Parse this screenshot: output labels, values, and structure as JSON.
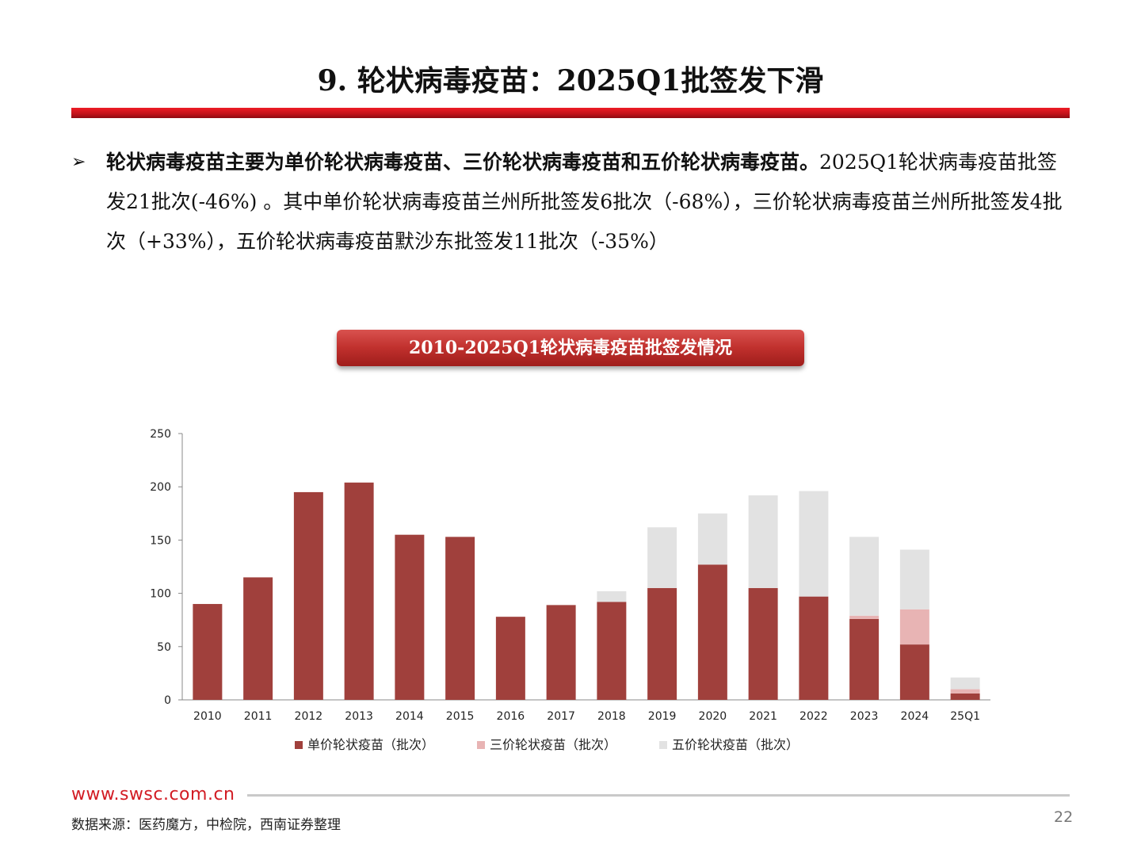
{
  "slide": {
    "title": "9. 轮状病毒疫苗：2025Q1批签发下滑",
    "bullet_arrow": "➢",
    "bullet_bold": "轮状病毒疫苗主要为单价轮状病毒疫苗、三价轮状病毒疫苗和五价轮状病毒疫苗。",
    "bullet_rest": "2025Q1轮状病毒疫苗批签发21批次(-46%) 。其中单价轮状病毒疫苗兰州所批签发6批次（-68%），三价轮状病毒疫苗兰州所批签发4批次（+33%），五价轮状病毒疫苗默沙东批签发11批次（-35%）",
    "chart_title": "2010-2025Q1轮状病毒疫苗批签发情况",
    "footer_url": "www.swsc.com.cn",
    "source": "数据来源：医药魔方，中检院，西南证券整理",
    "page_number": "22"
  },
  "chart_data": {
    "type": "bar",
    "stacked": true,
    "categories": [
      "2010",
      "2011",
      "2012",
      "2013",
      "2014",
      "2015",
      "2016",
      "2017",
      "2018",
      "2019",
      "2020",
      "2021",
      "2022",
      "2023",
      "2024",
      "25Q1"
    ],
    "series": [
      {
        "name": "单价轮状疫苗（批次）",
        "color": "#a0403c",
        "values": [
          90,
          115,
          195,
          204,
          155,
          153,
          78,
          89,
          92,
          105,
          127,
          105,
          97,
          76,
          52,
          6
        ]
      },
      {
        "name": "三价轮状疫苗（批次）",
        "color": "#e8b4b4",
        "values": [
          0,
          0,
          0,
          0,
          0,
          0,
          0,
          0,
          0,
          0,
          0,
          0,
          0,
          3,
          33,
          4
        ]
      },
      {
        "name": "五价轮状疫苗（批次）",
        "color": "#e2e2e2",
        "values": [
          0,
          0,
          0,
          0,
          0,
          0,
          0,
          0,
          10,
          57,
          48,
          87,
          99,
          74,
          56,
          11
        ]
      }
    ],
    "ylim": [
      0,
      250
    ],
    "yticks": [
      0,
      50,
      100,
      150,
      200,
      250
    ],
    "legend_position": "bottom",
    "grid": false
  }
}
